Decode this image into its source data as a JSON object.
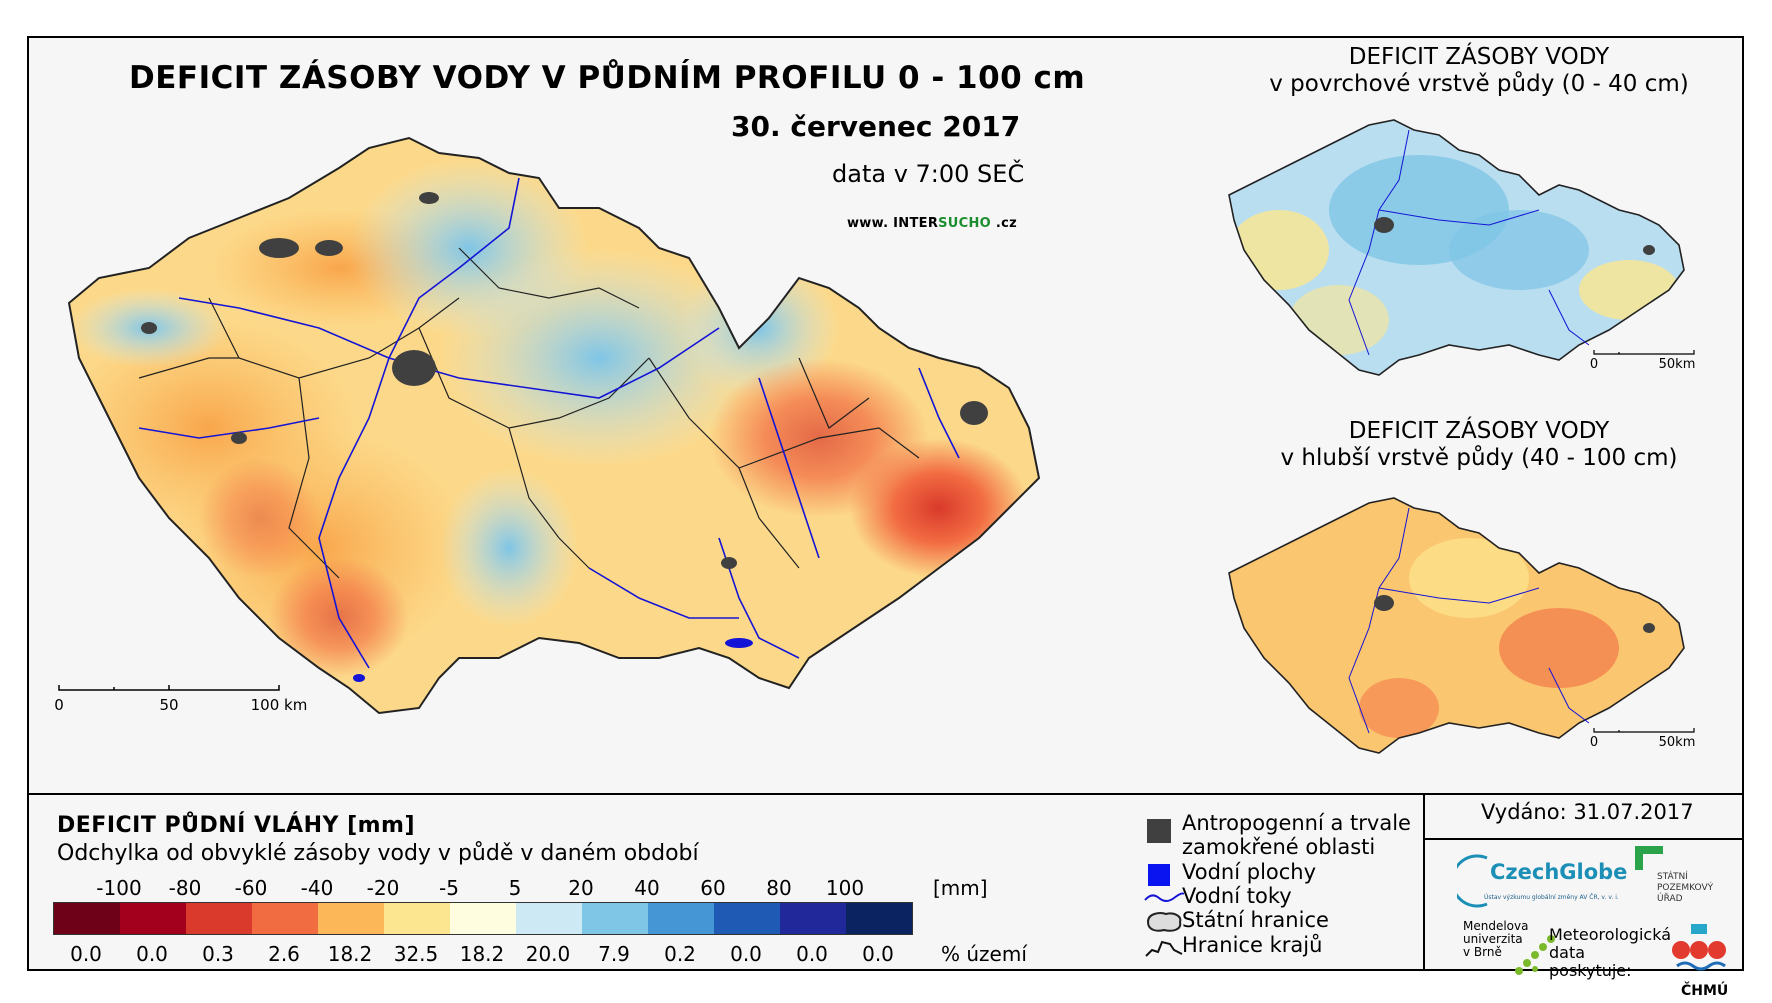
{
  "main": {
    "title": "DEFICIT ZÁSOBY VODY V PŮDNÍM PROFILU 0 - 100 cm",
    "date": "30. červenec 2017",
    "time": "data v 7:00 SEČ",
    "web_prefix": "www. INTER",
    "web_accent": "SUCHO",
    "web_suffix": " .cz",
    "scale": [
      "0",
      "50",
      "100 km"
    ]
  },
  "inset_top": {
    "title_line1": "DEFICIT ZÁSOBY VODY",
    "title_line2": "v povrchové vrstvě půdy (0 - 40 cm)",
    "scale": [
      "0",
      "50km"
    ]
  },
  "inset_bottom": {
    "title_line1": "DEFICIT ZÁSOBY VODY",
    "title_line2": "v hlubší vrstvě půdy (40 - 100 cm)",
    "scale": [
      "0",
      "50km"
    ]
  },
  "legend": {
    "title": "DEFICIT PŮDNÍ VLÁHY [mm]",
    "subtitle": "Odchylka od obvyklé zásoby vody v půdě v daném období",
    "unit": "[mm]",
    "breaks": [
      "-100",
      "-80",
      "-60",
      "-40",
      "-20",
      "-5",
      "5",
      "20",
      "40",
      "60",
      "80",
      "100"
    ],
    "colors": [
      "#6e0018",
      "#a3001e",
      "#d93a2b",
      "#f26c42",
      "#fbb758",
      "#fde690",
      "#fffde0",
      "#cde9f4",
      "#7fc5e6",
      "#4596d4",
      "#1f5ab5",
      "#21289a",
      "#0b2360"
    ],
    "percent": [
      "0.0",
      "0.0",
      "0.3",
      "2.6",
      "18.2",
      "32.5",
      "18.2",
      "20.0",
      "7.9",
      "0.2",
      "0.0",
      "0.0",
      "0.0"
    ],
    "percent_label": "% území"
  },
  "layers": {
    "anthropogenic_1": "Antropogenní a trvale",
    "anthropogenic_2": "zamokřené oblasti",
    "water_bodies": "Vodní plochy",
    "rivers": "Vodní toky",
    "state_border": "Státní hranice",
    "regions": "Hranice krajů"
  },
  "footer": {
    "issued": "Vydáno: 31.07.2017",
    "czechglobe": "CzechGlobe",
    "czechglobe_sub": "Ústav výzkumu globální změny AV ČR, v. v. i.",
    "mendel_1": "Mendelova",
    "mendel_2": "univerzita",
    "mendel_3": "v Brně",
    "spu_1": "STÁTNÍ",
    "spu_2": "POZEMKOVÝ",
    "spu_3": "ÚŘAD",
    "met_1": "Meteorologická",
    "met_2": "data",
    "met_3": "poskytuje:",
    "chmu": "ČHMÚ"
  }
}
